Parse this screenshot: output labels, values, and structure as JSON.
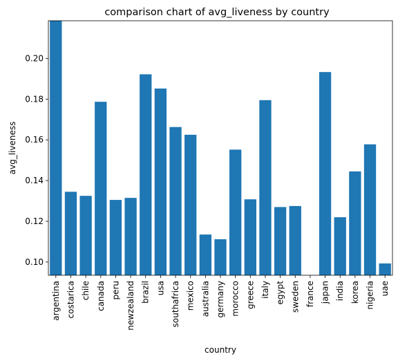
{
  "chart_data": {
    "type": "bar",
    "title": "comparison chart of avg_liveness by country",
    "xlabel": "country",
    "ylabel": "avg_liveness",
    "categories": [
      "argentina",
      "costarica",
      "chile",
      "canada",
      "peru",
      "newzealand",
      "brazil",
      "usa",
      "southafrica",
      "mexico",
      "australia",
      "germany",
      "morocco",
      "greece",
      "italy",
      "egypt",
      "sweden",
      "france",
      "japan",
      "india",
      "korea",
      "nigeria",
      "uae"
    ],
    "values": [
      0.2185,
      0.1345,
      0.1325,
      0.1787,
      0.1305,
      0.1315,
      0.1922,
      0.1852,
      0.1663,
      0.1625,
      0.1135,
      0.1112,
      0.1552,
      0.1308,
      0.1795,
      0.127,
      0.1275,
      0.093,
      0.1933,
      0.122,
      0.1445,
      0.1578,
      0.0993
    ],
    "ylim": [
      0.0935,
      0.2185
    ],
    "yticks": [
      0.1,
      0.12,
      0.14,
      0.16,
      0.18,
      0.2
    ],
    "ytick_labels": [
      "0.10",
      "0.12",
      "0.14",
      "0.16",
      "0.18",
      "0.20"
    ],
    "bar_color": "#1f77b4",
    "grid": false,
    "legend": "none"
  }
}
